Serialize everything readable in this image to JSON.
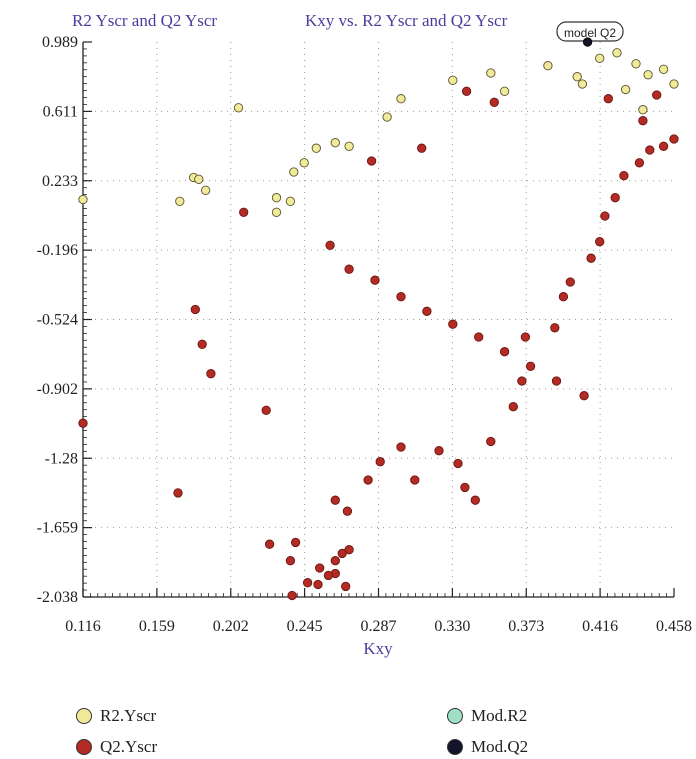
{
  "header": {
    "left_title": "R2 Yscr and Q2 Yscr",
    "center_title": "Kxy vs. R2 Yscr and Q2 Yscr",
    "tag_label": "model Q2"
  },
  "colors": {
    "title": "#4a3d9c",
    "r2": "#f1ea9a",
    "r2_stroke": "#5a5430",
    "q2": "#b32b24",
    "q2_stroke": "#6a1612",
    "mod_r2": "#9fe0c4",
    "mod_q2": "#15152a",
    "grid": "#9a9a9a"
  },
  "legend": [
    {
      "label": "R2.Yscr",
      "color": "#f1ea9a",
      "icon": "circle-marker-icon"
    },
    {
      "label": "Q2.Yscr",
      "color": "#b32b24",
      "icon": "circle-marker-icon"
    },
    {
      "label": "Mod.R2",
      "color": "#9fe0c4",
      "icon": "circle-marker-icon"
    },
    {
      "label": "Mod.Q2",
      "color": "#15152a",
      "icon": "circle-marker-icon"
    }
  ],
  "chart_data": {
    "type": "scatter",
    "title": "Kxy vs. R2 Yscr and Q2 Yscr",
    "xlabel": "Kxy",
    "ylabel": "R2 Yscr and Q2 Yscr",
    "xlim": [
      0.116,
      0.458
    ],
    "ylim": [
      -2.038,
      0.989
    ],
    "x_ticks": [
      "0.116",
      "0.159",
      "0.202",
      "0.245",
      "0.287",
      "0.330",
      "0.373",
      "0.416",
      "0.458"
    ],
    "y_ticks": [
      "0.989",
      "0.611",
      "0.233",
      "-0.196",
      "-0.524",
      "-0.902",
      "-1.28",
      "-1.659",
      "-2.038"
    ],
    "grid": true,
    "legend_position": "bottom",
    "series": [
      {
        "name": "R2.Yscr",
        "points": [
          [
            0.116,
            0.13
          ],
          [
            0.172,
            0.12
          ],
          [
            0.18,
            0.25
          ],
          [
            0.183,
            0.24
          ],
          [
            0.187,
            0.18
          ],
          [
            0.206,
            0.63
          ],
          [
            0.228,
            0.14
          ],
          [
            0.228,
            0.06
          ],
          [
            0.236,
            0.12
          ],
          [
            0.238,
            0.28
          ],
          [
            0.244,
            0.33
          ],
          [
            0.251,
            0.41
          ],
          [
            0.262,
            0.44
          ],
          [
            0.27,
            0.42
          ],
          [
            0.3,
            0.68
          ],
          [
            0.33,
            0.78
          ],
          [
            0.352,
            0.82
          ],
          [
            0.385,
            0.86
          ],
          [
            0.402,
            0.8
          ],
          [
            0.415,
            0.9
          ],
          [
            0.425,
            0.93
          ],
          [
            0.436,
            0.87
          ],
          [
            0.443,
            0.81
          ],
          [
            0.452,
            0.84
          ],
          [
            0.458,
            0.76
          ],
          [
            0.44,
            0.62
          ],
          [
            0.43,
            0.73
          ],
          [
            0.405,
            0.76
          ],
          [
            0.36,
            0.72
          ],
          [
            0.292,
            0.58
          ]
        ]
      },
      {
        "name": "Q2.Yscr",
        "points": [
          [
            0.116,
            -1.09
          ],
          [
            0.171,
            -1.47
          ],
          [
            0.181,
            -0.47
          ],
          [
            0.185,
            -0.66
          ],
          [
            0.19,
            -0.82
          ],
          [
            0.209,
            0.06
          ],
          [
            0.222,
            -1.02
          ],
          [
            0.224,
            -1.75
          ],
          [
            0.236,
            -1.84
          ],
          [
            0.237,
            -2.03
          ],
          [
            0.239,
            -1.74
          ],
          [
            0.246,
            -1.96
          ],
          [
            0.252,
            -1.97
          ],
          [
            0.253,
            -1.88
          ],
          [
            0.262,
            -1.91
          ],
          [
            0.266,
            -1.8
          ],
          [
            0.268,
            -1.98
          ],
          [
            0.27,
            -1.78
          ],
          [
            0.262,
            -1.84
          ],
          [
            0.258,
            -1.92
          ],
          [
            0.262,
            -1.51
          ],
          [
            0.269,
            -1.57
          ],
          [
            0.281,
            -1.4
          ],
          [
            0.288,
            -1.3
          ],
          [
            0.3,
            -1.22
          ],
          [
            0.308,
            -1.4
          ],
          [
            0.322,
            -1.24
          ],
          [
            0.333,
            -1.31
          ],
          [
            0.337,
            -1.44
          ],
          [
            0.343,
            -1.51
          ],
          [
            0.352,
            -1.19
          ],
          [
            0.365,
            -1.0
          ],
          [
            0.37,
            -0.86
          ],
          [
            0.372,
            -0.62
          ],
          [
            0.389,
            -0.57
          ],
          [
            0.394,
            -0.4
          ],
          [
            0.398,
            -0.32
          ],
          [
            0.41,
            -0.19
          ],
          [
            0.415,
            -0.1
          ],
          [
            0.418,
            0.04
          ],
          [
            0.424,
            0.14
          ],
          [
            0.429,
            0.26
          ],
          [
            0.438,
            0.33
          ],
          [
            0.444,
            0.4
          ],
          [
            0.452,
            0.42
          ],
          [
            0.458,
            0.46
          ],
          [
            0.259,
            -0.12
          ],
          [
            0.27,
            -0.25
          ],
          [
            0.285,
            -0.31
          ],
          [
            0.3,
            -0.4
          ],
          [
            0.315,
            -0.48
          ],
          [
            0.33,
            -0.55
          ],
          [
            0.345,
            -0.62
          ],
          [
            0.36,
            -0.7
          ],
          [
            0.375,
            -0.78
          ],
          [
            0.39,
            -0.86
          ],
          [
            0.406,
            -0.94
          ],
          [
            0.283,
            0.34
          ],
          [
            0.312,
            0.41
          ],
          [
            0.354,
            0.66
          ],
          [
            0.338,
            0.72
          ],
          [
            0.42,
            0.68
          ],
          [
            0.448,
            0.7
          ],
          [
            0.44,
            0.56
          ]
        ]
      },
      {
        "name": "Mod.R2",
        "points": []
      },
      {
        "name": "Mod.Q2",
        "points": [
          [
            0.408,
            0.989
          ]
        ]
      }
    ]
  }
}
